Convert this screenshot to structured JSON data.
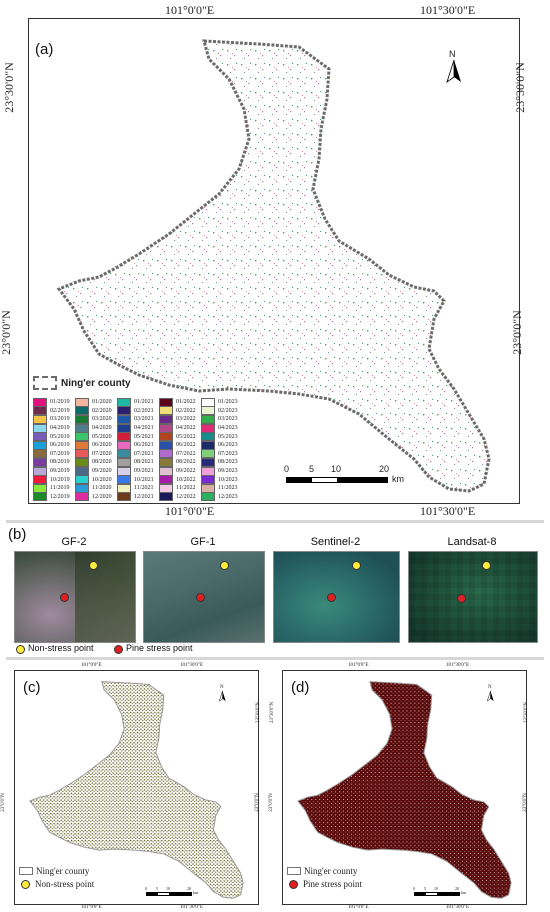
{
  "panel_a": {
    "letter": "(a)",
    "top_lon_left": "101°0'0\"E",
    "top_lon_right": "101°30'0\"E",
    "bottom_lon_left": "101°0'0\"E",
    "bottom_lon_right": "101°30'0\"E",
    "left_lat_top": "23°30'0\"N",
    "left_lat_bottom": "23°0'0\"N",
    "right_lat_top": "23°30'0\"N",
    "right_lat_bottom": "23°0'0\"N",
    "north": "N",
    "county_label": "Ning'er county",
    "scalebar": [
      "0",
      "5",
      "10",
      "20",
      "km"
    ],
    "legend": [
      {
        "label": "01/2019",
        "color": "#e0117f"
      },
      {
        "label": "01/2020",
        "color": "#f4b6a0"
      },
      {
        "label": "01/2021",
        "color": "#1fb9a3"
      },
      {
        "label": "01/2022",
        "color": "#5a0a1e"
      },
      {
        "label": "01/2023",
        "color": "#ffffff"
      },
      {
        "label": "02/2019",
        "color": "#6e2a4a"
      },
      {
        "label": "02/2020",
        "color": "#0d6b6b"
      },
      {
        "label": "02/2021",
        "color": "#2b1f6e"
      },
      {
        "label": "02/2022",
        "color": "#f1df79"
      },
      {
        "label": "02/2023",
        "color": "#e8f5d0"
      },
      {
        "label": "03/2019",
        "color": "#f2c44b"
      },
      {
        "label": "03/2020",
        "color": "#1b7a33"
      },
      {
        "label": "03/2021",
        "color": "#1f5aa8"
      },
      {
        "label": "03/2022",
        "color": "#6a2a8a"
      },
      {
        "label": "03/2023",
        "color": "#33b04a"
      },
      {
        "label": "04/2019",
        "color": "#8ed6ee"
      },
      {
        "label": "04/2020",
        "color": "#4f7d8a"
      },
      {
        "label": "04/2021",
        "color": "#1f3f8f"
      },
      {
        "label": "04/2022",
        "color": "#b04a8a"
      },
      {
        "label": "04/2023",
        "color": "#e02a7a"
      },
      {
        "label": "05/2019",
        "color": "#7a5bb8"
      },
      {
        "label": "05/2020",
        "color": "#3cc46a"
      },
      {
        "label": "05/2021",
        "color": "#d11f3a"
      },
      {
        "label": "05/2022",
        "color": "#b0451f"
      },
      {
        "label": "05/2023",
        "color": "#1a8a8a"
      },
      {
        "label": "06/2019",
        "color": "#1f9fd8"
      },
      {
        "label": "06/2020",
        "color": "#e07a3a"
      },
      {
        "label": "06/2021",
        "color": "#e86ac0"
      },
      {
        "label": "06/2022",
        "color": "#2a4fa8"
      },
      {
        "label": "06/2023",
        "color": "#1a2a6a"
      },
      {
        "label": "07/2019",
        "color": "#8a6a3a"
      },
      {
        "label": "07/2020",
        "color": "#e85a5a"
      },
      {
        "label": "07/2021",
        "color": "#3a8aa0"
      },
      {
        "label": "07/2022",
        "color": "#b06acd"
      },
      {
        "label": "07/2023",
        "color": "#7ed07a"
      },
      {
        "label": "08/2019",
        "color": "#7a3aa0"
      },
      {
        "label": "08/2020",
        "color": "#6a8a1a"
      },
      {
        "label": "08/2021",
        "color": "#a0a0a0"
      },
      {
        "label": "08/2022",
        "color": "#8a7a3a"
      },
      {
        "label": "08/2023",
        "color": "#2a2a7a"
      },
      {
        "label": "09/2019",
        "color": "#b8a8d8"
      },
      {
        "label": "09/2020",
        "color": "#4a6a8a"
      },
      {
        "label": "09/2021",
        "color": "#d8d0e8"
      },
      {
        "label": "09/2022",
        "color": "#e0c0d0"
      },
      {
        "label": "09/2023",
        "color": "#f0a0d8"
      },
      {
        "label": "10/2019",
        "color": "#f01a3a"
      },
      {
        "label": "10/2020",
        "color": "#2ad0d0"
      },
      {
        "label": "10/2021",
        "color": "#3a7ae8"
      },
      {
        "label": "10/2022",
        "color": "#a81aa8"
      },
      {
        "label": "10/2023",
        "color": "#7a2ad0"
      },
      {
        "label": "11/2019",
        "color": "#8ae83a"
      },
      {
        "label": "11/2020",
        "color": "#2a9ad8"
      },
      {
        "label": "11/2021",
        "color": "#f0f0c0"
      },
      {
        "label": "11/2022",
        "color": "#f4c8e0"
      },
      {
        "label": "11/2023",
        "color": "#d8b0a0"
      },
      {
        "label": "12/2019",
        "color": "#1a8a2a"
      },
      {
        "label": "12/2020",
        "color": "#e02aa0"
      },
      {
        "label": "12/2021",
        "color": "#6a3a1a"
      },
      {
        "label": "12/2022",
        "color": "#1a1a5a"
      },
      {
        "label": "12/2023",
        "color": "#2ab05a"
      }
    ]
  },
  "panel_b": {
    "letter": "(b)",
    "titles": [
      "GF-2",
      "GF-1",
      "Sentinel-2",
      "Landsat-8"
    ],
    "legend_non_stress": "Non-stress point",
    "legend_pine_stress": "Pine stress point",
    "colors": {
      "non_stress": "#ffeb3b",
      "pine_stress": "#e02020"
    }
  },
  "panel_c": {
    "letter": "(c)",
    "lon_left": "101°0'0\"E",
    "lon_right": "101°30'0\"E",
    "lat_top": "23°30'0\"N",
    "lat_bottom": "23°0'0\"N",
    "north": "N",
    "legend_county": "Ning'er county",
    "legend_point": "Non-stress point",
    "scalebar": [
      "0",
      "5",
      "10",
      "20",
      "km"
    ],
    "fill_color": "#5a5a1a"
  },
  "panel_d": {
    "letter": "(d)",
    "lon_left": "101°0'0\"E",
    "lon_right": "101°30'0\"E",
    "lat_top": "23°30'0\"N",
    "lat_bottom": "23°0'0\"N",
    "north": "N",
    "legend_county": "Ning'er county",
    "legend_point": "Pine stress point",
    "scalebar": [
      "0",
      "5",
      "10",
      "20",
      "km"
    ],
    "fill_color": "#5a0a0a"
  }
}
